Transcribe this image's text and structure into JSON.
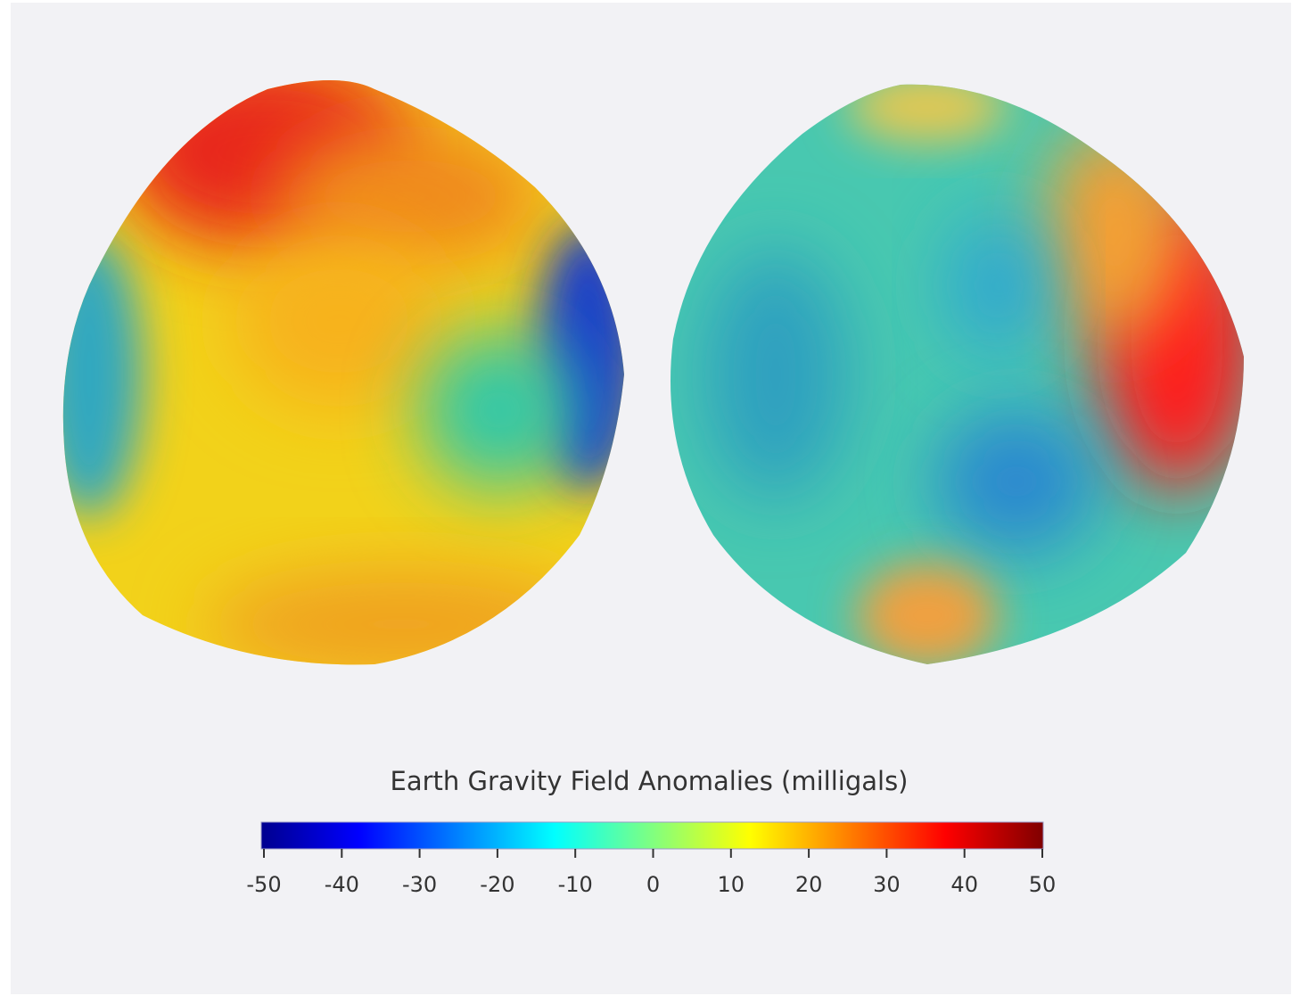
{
  "colorbar": {
    "title": "Earth Gravity Field Anomalies (milligals)",
    "lim": [
      -50,
      50
    ],
    "ticks": [
      -50,
      -40,
      -30,
      -20,
      -10,
      0,
      10,
      20,
      30,
      40,
      50
    ],
    "colors": [
      "#00008f",
      "#0000ff",
      "#0080ff",
      "#00ffff",
      "#80ff80",
      "#ffff00",
      "#ff8000",
      "#ff0000",
      "#800000"
    ]
  }
}
